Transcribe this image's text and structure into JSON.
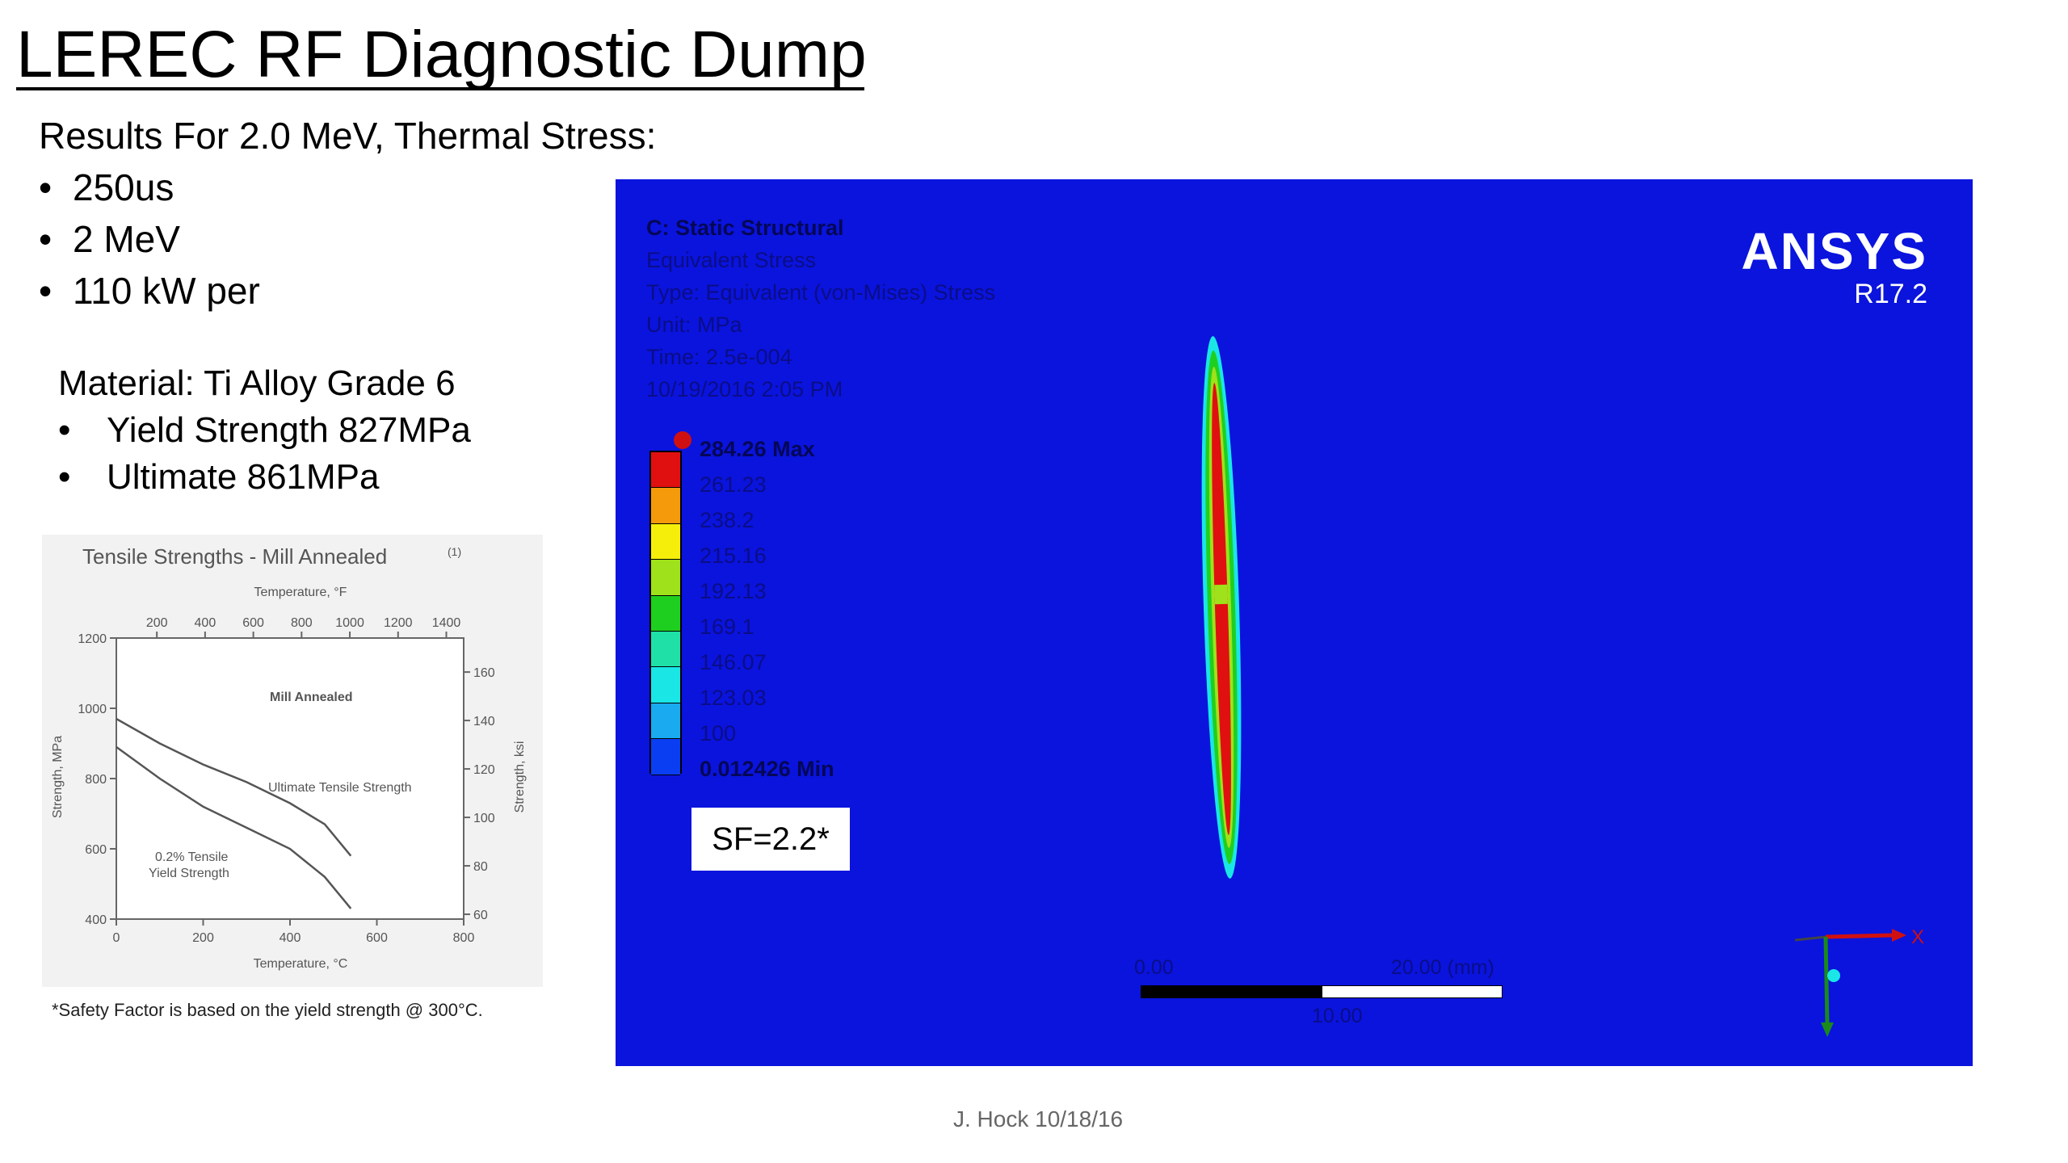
{
  "title": "LEREC RF Diagnostic Dump",
  "subtitle": "Results For 2.0 MeV, Thermal Stress:",
  "bullet_glyph": "•",
  "bullets": [
    "250us",
    "2 MeV",
    "110 kW per"
  ],
  "material": {
    "label": "Material: Ti Alloy Grade 6",
    "items": [
      "Yield Strength 827MPa",
      "Ultimate  861MPa"
    ]
  },
  "tensile_chart": {
    "title": "Tensile Strengths - Mill Annealed",
    "title_note": "(1)",
    "top_axis_label": "Temperature, °F",
    "top_ticks": [
      "200",
      "400",
      "600",
      "800",
      "1000",
      "1200",
      "1400"
    ],
    "bottom_axis_label": "Temperature, °C",
    "bottom_ticks": [
      "0",
      "200",
      "400",
      "600",
      "800"
    ],
    "left_axis_label": "Strength, MPa",
    "left_ticks": [
      "1200",
      "1000",
      "800",
      "600",
      "400"
    ],
    "right_axis_label": "Strength, ksi",
    "right_ticks": [
      "160",
      "140",
      "120",
      "100",
      "80",
      "60"
    ],
    "annotation": "Mill Annealed",
    "uts_label": "Ultimate Tensile Strength",
    "ys_label_1": "0.2% Tensile",
    "ys_label_2": "Yield Strength"
  },
  "chart_data": {
    "type": "line",
    "title": "Tensile Strengths - Mill Annealed",
    "xlabel": "Temperature, °C",
    "ylabel": "Strength, MPa",
    "xlim": [
      0,
      800
    ],
    "ylim": [
      400,
      1200
    ],
    "series": [
      {
        "name": "Ultimate Tensile Strength",
        "x": [
          0,
          100,
          200,
          300,
          400,
          480,
          540
        ],
        "y": [
          970,
          900,
          840,
          790,
          730,
          670,
          580
        ]
      },
      {
        "name": "0.2% Tensile Yield Strength",
        "x": [
          0,
          100,
          200,
          300,
          400,
          480,
          540
        ],
        "y": [
          890,
          800,
          720,
          660,
          600,
          520,
          430
        ]
      }
    ],
    "grid": false
  },
  "footnote": "*Safety Factor is based on the yield strength @ 300°C.",
  "ansys": {
    "header": "C: Static Structural",
    "lines": [
      "Equivalent Stress",
      "Type: Equivalent (von-Mises) Stress",
      "Unit: MPa",
      "Time: 2.5e-004",
      "10/19/2016 2:05 PM"
    ],
    "legend_labels": [
      "284.26 Max",
      "261.23",
      "238.2",
      "215.16",
      "192.13",
      "169.1",
      "146.07",
      "123.03",
      "100",
      "0.012426 Min"
    ],
    "legend_colors": [
      "#e01010",
      "#f59a0a",
      "#f5ee0a",
      "#9fe11a",
      "#1fcf1f",
      "#1fe0a6",
      "#1ae6e6",
      "#1aaaf0",
      "#0a3ef2"
    ],
    "safety_factor": "SF=2.2*",
    "brand": "ANSYS",
    "version": "R17.2",
    "scale_left": "0.00",
    "scale_right": "20.00 (mm)",
    "scale_mid": "10.00",
    "axis_x": "X"
  },
  "footer": "J. Hock 10/18/16"
}
